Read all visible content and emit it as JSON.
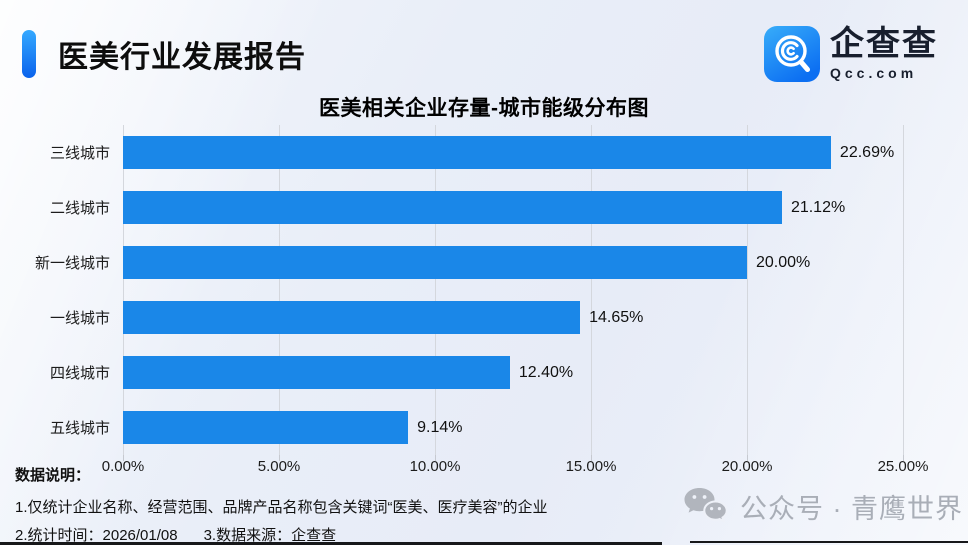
{
  "header": {
    "title": "医美行业发展报告",
    "accent_colors": {
      "top": "#35a9ff",
      "bottom": "#0a62ec"
    },
    "logo": {
      "name": "企查查",
      "domain": "Qcc.com",
      "icon": "qcc-magnifier-icon",
      "icon_gradient": {
        "top": "#34aaf8",
        "bottom": "#0c6ff2"
      }
    }
  },
  "chart_data": {
    "type": "bar",
    "orientation": "horizontal",
    "title": "医美相关企业存量-城市能级分布图",
    "categories": [
      "三线城市",
      "二线城市",
      "新一线城市",
      "一线城市",
      "四线城市",
      "五线城市"
    ],
    "values": [
      22.69,
      21.12,
      20.0,
      14.65,
      12.4,
      9.14
    ],
    "value_labels": [
      "22.69%",
      "21.12%",
      "20.00%",
      "14.65%",
      "12.40%",
      "9.14%"
    ],
    "x_ticks": [
      0,
      5,
      10,
      15,
      20,
      25
    ],
    "x_tick_labels": [
      "0.00%",
      "5.00%",
      "10.00%",
      "15.00%",
      "20.00%",
      "25.00%"
    ],
    "xlim": [
      0,
      25
    ],
    "grid": true,
    "legend": "none",
    "bar_color": "#1a87e8"
  },
  "footnotes": {
    "label": "数据说明：",
    "line1": "1.仅统计企业名称、经营范围、品牌产品名称包含关键词“医美、医疗美容”的企业",
    "line2_time": "2.统计时间：2026/01/08",
    "line2_source": "3.数据来源：企查查"
  },
  "watermark": {
    "icon": "wechat-icon",
    "text": "公众号 · 青鹰世界",
    "color": "#a9aeb7"
  }
}
